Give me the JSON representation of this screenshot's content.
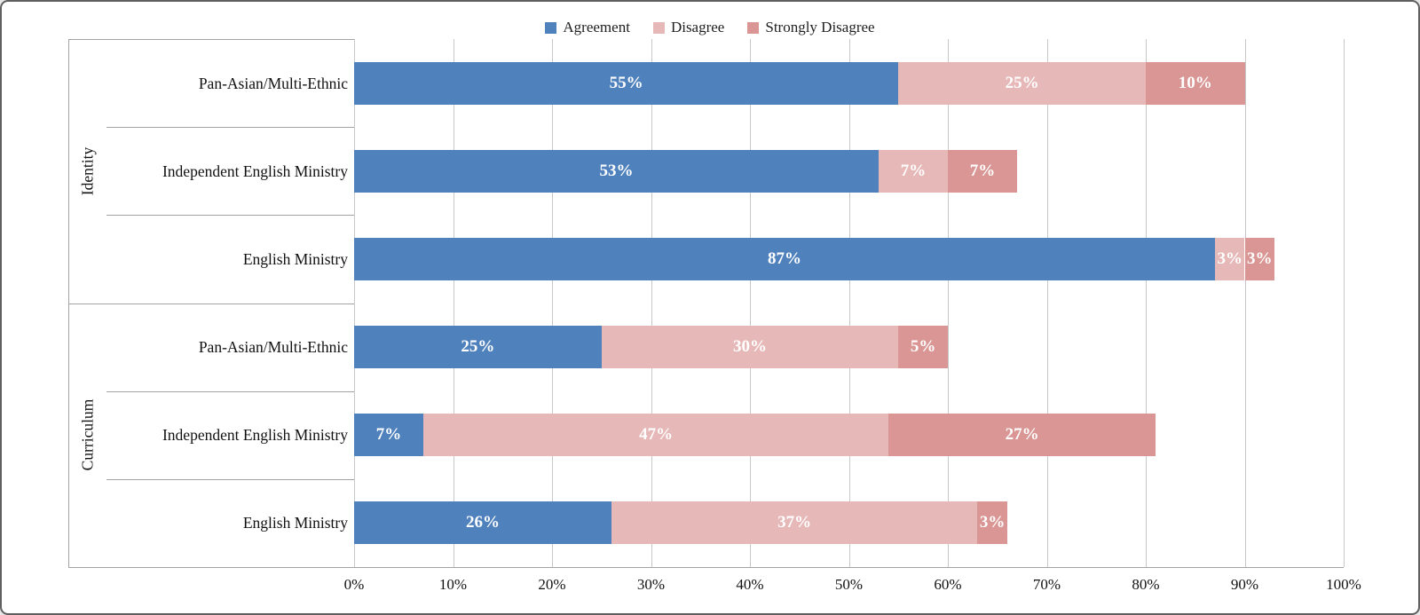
{
  "chart_data": {
    "type": "bar",
    "orientation": "horizontal",
    "stacked": true,
    "legend_position": "top",
    "grid": true,
    "title": "",
    "xlabel": "",
    "ylabel": "",
    "series": [
      {
        "name": "Agreement",
        "color": "#4F81BD"
      },
      {
        "name": "Disagree",
        "color": "#E6B9B8"
      },
      {
        "name": "Strongly Disagree",
        "color": "#D99694"
      }
    ],
    "groups": [
      {
        "label": "Identity",
        "rows": [
          {
            "label": "Pan-Asian/Multi-Ethnic",
            "values": [
              55,
              25,
              10
            ]
          },
          {
            "label": "Independent English Ministry",
            "values": [
              53,
              7,
              7
            ]
          },
          {
            "label": "English Ministry",
            "values": [
              87,
              3,
              3
            ]
          }
        ]
      },
      {
        "label": "Curriculum",
        "rows": [
          {
            "label": "Pan-Asian/Multi-Ethnic",
            "values": [
              25,
              30,
              5
            ]
          },
          {
            "label": "Independent English Ministry",
            "values": [
              7,
              47,
              27
            ]
          },
          {
            "label": "English Ministry",
            "values": [
              26,
              37,
              3
            ]
          }
        ]
      }
    ],
    "x_axis": {
      "min": 0,
      "max": 100,
      "step": 10,
      "tick_labels": [
        "0%",
        "10%",
        "20%",
        "30%",
        "40%",
        "50%",
        "60%",
        "70%",
        "80%",
        "90%",
        "100%"
      ]
    },
    "value_label_suffix": "%"
  },
  "colors": {
    "gridline": "#C9C9C9",
    "axis_line": "#A3A3A3",
    "frame_border": "#606060",
    "text": "#1A1A1A",
    "bar_label": "#FFFFFF"
  }
}
